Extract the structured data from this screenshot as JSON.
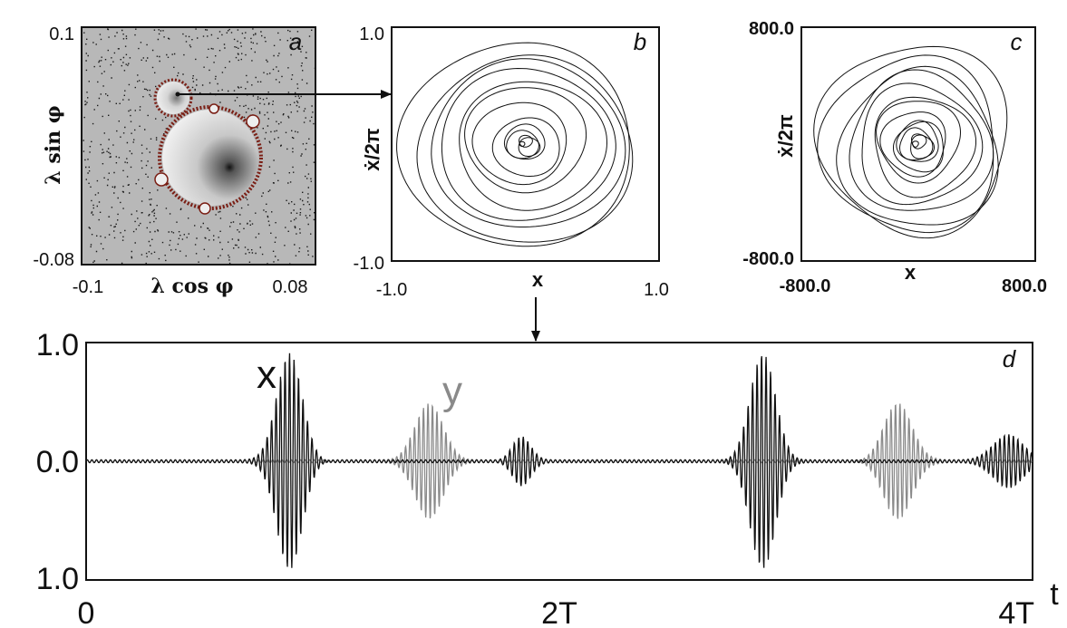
{
  "chart_data": [
    {
      "panel": "a",
      "type": "heatmap",
      "xlabel": "λ cos φ",
      "ylabel": "λ sin φ",
      "xticks": [
        "-0.1",
        "0.08"
      ],
      "yticks": [
        "0.1",
        "-0.08"
      ],
      "xlim": [
        -0.1,
        0.08
      ],
      "ylim": [
        -0.08,
        0.1
      ],
      "label": "a",
      "colors": {
        "background": "#b8b8b8",
        "boundary": "#7a1e14",
        "set": "#ffffff"
      }
    },
    {
      "panel": "b",
      "type": "line",
      "xlabel": "x",
      "ylabel": "ẋ/2π",
      "xticks": [
        "-1.0",
        "1.0"
      ],
      "yticks": [
        "1.0",
        "-1.0"
      ],
      "xlim": [
        -1.0,
        1.0
      ],
      "ylim": [
        -1.0,
        1.0
      ],
      "label": "b",
      "orbit_radii": [
        0.02,
        0.05,
        0.08,
        0.12,
        0.15,
        0.25,
        0.35,
        0.45,
        0.55,
        0.65,
        0.72,
        0.8,
        0.87
      ]
    },
    {
      "panel": "c",
      "type": "line",
      "xlabel": "x",
      "ylabel": "ẋ/2π",
      "xticks": [
        "-800.0",
        "800.0"
      ],
      "yticks": [
        "800.0",
        "-800.0"
      ],
      "xlim": [
        -800.0,
        800.0
      ],
      "ylim": [
        -800.0,
        800.0
      ],
      "label": "c",
      "orbit_radii": [
        20,
        50,
        80,
        110,
        140,
        170,
        220,
        280,
        340,
        410,
        480,
        540,
        600,
        650
      ]
    },
    {
      "panel": "d",
      "type": "line",
      "xlabel": "t",
      "xticks": [
        "0",
        "2T",
        "4T"
      ],
      "x_tick_values": [
        0,
        2,
        4
      ],
      "yticks": [
        "1.0",
        "0.0",
        "1.0"
      ],
      "xlim": [
        0,
        4
      ],
      "ylim": [
        -1.0,
        1.0
      ],
      "label": "d",
      "series": [
        {
          "name": "x",
          "color": "#111111",
          "bursts": [
            {
              "center": 0.86,
              "width": 0.17,
              "amplitude": 0.92
            },
            {
              "center": 1.84,
              "width": 0.12,
              "amplitude": 0.2
            },
            {
              "center": 2.86,
              "width": 0.17,
              "amplitude": 0.92
            },
            {
              "center": 3.9,
              "width": 0.2,
              "amplitude": 0.22
            }
          ]
        },
        {
          "name": "y",
          "color": "#8a8a8a",
          "bursts": [
            {
              "center": 1.45,
              "width": 0.19,
              "amplitude": 0.5
            },
            {
              "center": 3.43,
              "width": 0.19,
              "amplitude": 0.5
            }
          ]
        }
      ],
      "carrier_period": 0.019
    }
  ]
}
